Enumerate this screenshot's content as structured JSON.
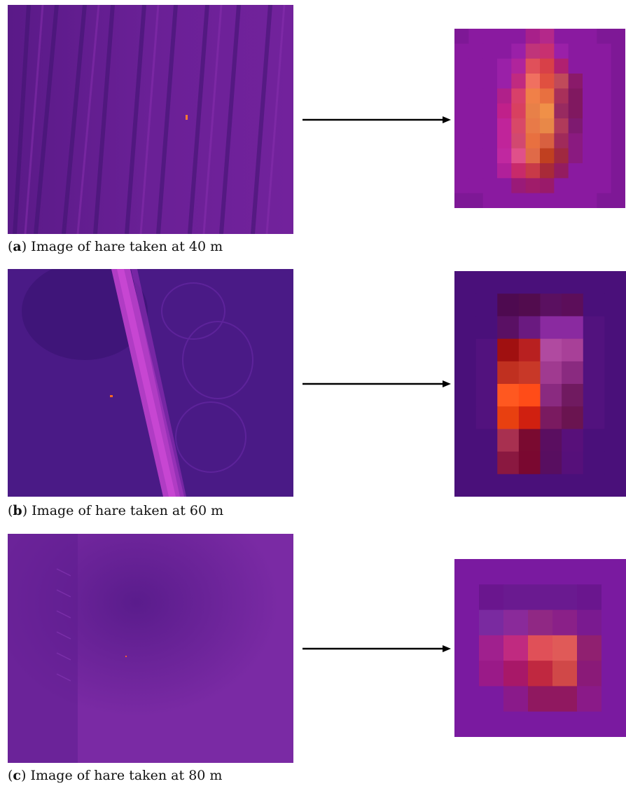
{
  "figure": {
    "panels": [
      {
        "id": "a",
        "caption_open": "(",
        "caption_letter": "a",
        "caption_text": ") Image of hare taken at 40 m"
      },
      {
        "id": "b",
        "caption_open": "(",
        "caption_letter": "b",
        "caption_text": ") Image of hare taken at 60 m"
      },
      {
        "id": "c",
        "caption_open": "(",
        "caption_letter": "c",
        "caption_text": ") Image of hare taken at 80 m"
      }
    ]
  }
}
